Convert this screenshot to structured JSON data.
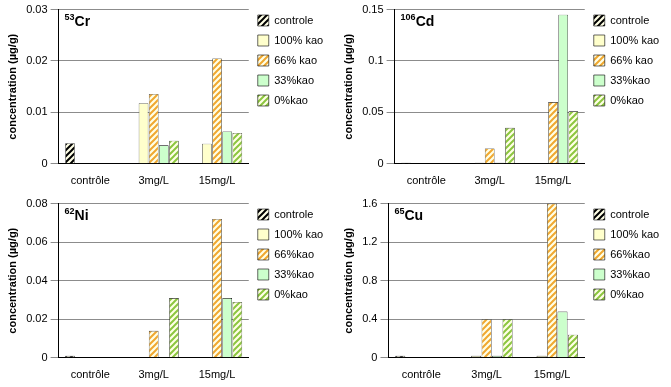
{
  "chart_data": [
    {
      "type": "bar",
      "title": "53Cr",
      "ylabel": "concentration (µg/g)",
      "categories": [
        "contrôle",
        "3mg/L",
        "15mg/L"
      ],
      "series": [
        {
          "name": "controle",
          "color": "#000000",
          "values": [
            0.004,
            null,
            null
          ]
        },
        {
          "name": "100% kao",
          "color": "#ffffcc",
          "values": [
            null,
            0.0118,
            0.0039
          ]
        },
        {
          "name": "66% kao",
          "color": "#f0a830",
          "values": [
            null,
            0.0136,
            0.0205
          ]
        },
        {
          "name": "33%kao",
          "color": "#ccffcc",
          "values": [
            null,
            0.0036,
            0.0063
          ]
        },
        {
          "name": "0%kao",
          "color": "#8cc63f",
          "values": [
            null,
            0.0045,
            0.006
          ]
        }
      ],
      "ylim": [
        0,
        0.03
      ],
      "yticks": [
        0,
        0.01,
        0.02,
        0.03
      ],
      "grid": true,
      "legend": "right"
    },
    {
      "type": "bar",
      "title": "106Cd",
      "ylabel": "concentration (µg/g)",
      "categories": [
        "contrôle",
        "3mg/L",
        "15mg/L"
      ],
      "series": [
        {
          "name": "controle",
          "color": "#000000",
          "values": [
            0.001,
            null,
            null
          ]
        },
        {
          "name": "100% kao",
          "color": "#ffffcc",
          "values": [
            null,
            0.001,
            0
          ]
        },
        {
          "name": "66% kao",
          "color": "#f0a830",
          "values": [
            null,
            0.015,
            0.06
          ]
        },
        {
          "name": "33%kao",
          "color": "#ccffcc",
          "values": [
            null,
            0.001,
            0.145
          ]
        },
        {
          "name": "0%kao",
          "color": "#8cc63f",
          "values": [
            null,
            0.035,
            0.051
          ]
        }
      ],
      "ylim": [
        0,
        0.15
      ],
      "yticks": [
        0,
        0.05,
        0.1,
        0.15
      ],
      "grid": true,
      "legend": "right"
    },
    {
      "type": "bar",
      "title": "62Ni",
      "ylabel": "concentration (µg/g)",
      "categories": [
        "contrôle",
        "3mg/L",
        "15mg/L"
      ],
      "series": [
        {
          "name": "controle",
          "color": "#000000",
          "values": [
            0.001,
            null,
            null
          ]
        },
        {
          "name": "100% kao",
          "color": "#ffffcc",
          "values": [
            null,
            0,
            0
          ]
        },
        {
          "name": "66%kao",
          "color": "#f0a830",
          "values": [
            null,
            0.014,
            0.072
          ]
        },
        {
          "name": "33%kao",
          "color": "#ccffcc",
          "values": [
            null,
            0,
            0.031
          ]
        },
        {
          "name": "0%kao",
          "color": "#8cc63f",
          "values": [
            null,
            0.031,
            0.029
          ]
        }
      ],
      "ylim": [
        0,
        0.08
      ],
      "yticks": [
        0,
        0.02,
        0.04,
        0.06,
        0.08
      ],
      "grid": true,
      "legend": "right"
    },
    {
      "type": "bar",
      "title": "65Cu",
      "ylabel": "concentration (µg/g)",
      "categories": [
        "contrôle",
        "3mg/L",
        "15mg/L"
      ],
      "series": [
        {
          "name": "controle",
          "color": "#000000",
          "values": [
            0.02,
            null,
            null
          ]
        },
        {
          "name": "100% kao",
          "color": "#ffffcc",
          "values": [
            null,
            0.02,
            0.02
          ]
        },
        {
          "name": "66%kao",
          "color": "#f0a830",
          "values": [
            null,
            0.4,
            1.6
          ]
        },
        {
          "name": "33%kao",
          "color": "#ccffcc",
          "values": [
            null,
            0.02,
            0.48
          ]
        },
        {
          "name": "0%kao",
          "color": "#8cc63f",
          "values": [
            null,
            0.4,
            0.24
          ]
        }
      ],
      "ylim": [
        0,
        1.6
      ],
      "yticks": [
        0,
        0.4,
        0.8,
        1.2,
        1.6
      ],
      "grid": true,
      "legend": "right"
    }
  ]
}
